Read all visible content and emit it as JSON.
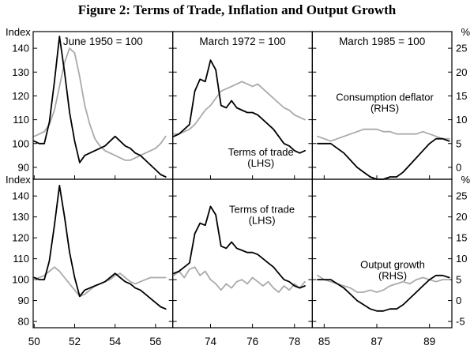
{
  "chart_data": {
    "type": "line",
    "title": "Figure 2: Terms of Trade, Inflation and Output Growth",
    "colors": {
      "black": "#000000",
      "gray": "#aaaaaa"
    },
    "right_axis_alignment": {
      "index_at_zero_pct": 90,
      "index_per_pct": 2
    },
    "rows": [
      {
        "left_axis": {
          "label": "Index",
          "ticks": [
            140,
            130,
            120,
            110,
            100,
            90
          ],
          "range": [
            85,
            147
          ]
        },
        "right_axis": {
          "label": "%",
          "ticks": [
            25,
            20,
            15,
            10,
            5,
            0
          ]
        },
        "show_panel_titles": true,
        "show_x_labels": false,
        "panels": [
          {
            "title": "June 1950 = 100",
            "x_range": [
              49.95,
              56.85
            ],
            "x_ticks": [
              50,
              52,
              54,
              56
            ],
            "series": [
              {
                "name": "Terms of trade",
                "axis": "left",
                "color": "black",
                "data_key": "tot_1950s"
              },
              {
                "name": "Consumption deflator",
                "axis": "right",
                "color": "gray",
                "data_key": "cpi_1950s"
              }
            ],
            "annotations": []
          },
          {
            "title": "March 1972 = 100",
            "x_range": [
              72.2,
              78.85
            ],
            "x_ticks": [
              74,
              76,
              78
            ],
            "series": [
              {
                "name": "Terms of trade",
                "axis": "left",
                "color": "black",
                "data_key": "tot_1970s"
              },
              {
                "name": "Consumption deflator",
                "axis": "right",
                "color": "gray",
                "data_key": "cpi_1970s"
              }
            ],
            "annotations": [
              {
                "lines": [
                  "Terms of trade",
                  "(LHS)"
                ],
                "x": 76.4,
                "y_index": 95
              }
            ]
          },
          {
            "title": "March 1985 = 100",
            "x_range": [
              84.55,
              89.85
            ],
            "x_ticks": [
              85,
              87,
              89
            ],
            "series": [
              {
                "name": "Terms of trade",
                "axis": "left",
                "color": "black",
                "data_key": "tot_1980s"
              },
              {
                "name": "Consumption deflator",
                "axis": "right",
                "color": "gray",
                "data_key": "cpi_1980s"
              }
            ],
            "annotations": [
              {
                "lines": [
                  "Consumption deflator",
                  "(RHS)"
                ],
                "x": 87.3,
                "y_index": 118
              }
            ]
          }
        ]
      },
      {
        "left_axis": {
          "label": "Index",
          "ticks": [
            140,
            130,
            120,
            110,
            100,
            90,
            80
          ],
          "range": [
            77,
            148
          ]
        },
        "right_axis": {
          "label": "%",
          "ticks": [
            25,
            20,
            15,
            10,
            5,
            0,
            -5
          ]
        },
        "show_panel_titles": false,
        "show_x_labels": true,
        "panels": [
          {
            "title": "",
            "x_range": [
              49.95,
              56.85
            ],
            "x_ticks": [
              50,
              52,
              54,
              56
            ],
            "series": [
              {
                "name": "Terms of trade",
                "axis": "left",
                "color": "black",
                "data_key": "tot_1950s"
              },
              {
                "name": "Output growth",
                "axis": "right",
                "color": "gray",
                "data_key": "gdp_1950s"
              }
            ],
            "annotations": []
          },
          {
            "title": "",
            "x_range": [
              72.2,
              78.85
            ],
            "x_ticks": [
              74,
              76,
              78
            ],
            "series": [
              {
                "name": "Terms of trade",
                "axis": "left",
                "color": "black",
                "data_key": "tot_1970s"
              },
              {
                "name": "Output growth",
                "axis": "right",
                "color": "gray",
                "data_key": "gdp_1970s"
              }
            ],
            "annotations": [
              {
                "lines": [
                  "Terms of trade",
                  "(LHS)"
                ],
                "x": 76.45,
                "y_index": 132
              }
            ]
          },
          {
            "title": "",
            "x_range": [
              84.55,
              89.85
            ],
            "x_ticks": [
              85,
              87,
              89
            ],
            "series": [
              {
                "name": "Terms of trade",
                "axis": "left",
                "color": "black",
                "data_key": "tot_1980s"
              },
              {
                "name": "Output growth",
                "axis": "right",
                "color": "gray",
                "data_key": "gdp_1980s"
              }
            ],
            "annotations": [
              {
                "lines": [
                  "Output growth",
                  "(RHS)"
                ],
                "x": 87.6,
                "y_index": 105.5
              }
            ]
          }
        ]
      }
    ],
    "series_data": {
      "tot_1950s": [
        [
          50.0,
          101
        ],
        [
          50.25,
          100
        ],
        [
          50.5,
          100
        ],
        [
          50.75,
          109
        ],
        [
          51.0,
          126
        ],
        [
          51.25,
          145
        ],
        [
          51.5,
          130
        ],
        [
          51.75,
          113
        ],
        [
          52.0,
          101
        ],
        [
          52.25,
          92
        ],
        [
          52.5,
          95
        ],
        [
          52.75,
          96
        ],
        [
          53.0,
          97
        ],
        [
          53.25,
          98
        ],
        [
          53.5,
          99
        ],
        [
          53.75,
          101
        ],
        [
          54.0,
          103
        ],
        [
          54.25,
          101
        ],
        [
          54.5,
          99
        ],
        [
          54.75,
          98
        ],
        [
          55.0,
          96
        ],
        [
          55.25,
          95
        ],
        [
          55.5,
          93
        ],
        [
          55.75,
          91
        ],
        [
          56.0,
          89
        ],
        [
          56.25,
          87
        ],
        [
          56.5,
          86
        ]
      ],
      "cpi_1950s": [
        [
          50.0,
          6.5
        ],
        [
          50.25,
          7
        ],
        [
          50.5,
          7.5
        ],
        [
          50.75,
          9
        ],
        [
          51.0,
          12
        ],
        [
          51.25,
          17
        ],
        [
          51.5,
          22
        ],
        [
          51.75,
          25
        ],
        [
          52.0,
          24
        ],
        [
          52.25,
          19
        ],
        [
          52.5,
          13
        ],
        [
          52.75,
          9
        ],
        [
          53.0,
          6
        ],
        [
          53.25,
          4.5
        ],
        [
          53.5,
          3.5
        ],
        [
          53.75,
          3
        ],
        [
          54.0,
          2.5
        ],
        [
          54.25,
          2
        ],
        [
          54.5,
          1.5
        ],
        [
          54.75,
          1.5
        ],
        [
          55.0,
          2
        ],
        [
          55.25,
          2.5
        ],
        [
          55.5,
          3
        ],
        [
          55.75,
          3.5
        ],
        [
          56.0,
          4
        ],
        [
          56.25,
          5
        ],
        [
          56.5,
          6.5
        ]
      ],
      "gdp_1950s": [
        [
          50.0,
          5
        ],
        [
          50.25,
          5.5
        ],
        [
          50.5,
          6
        ],
        [
          50.75,
          7
        ],
        [
          51.0,
          8
        ],
        [
          51.25,
          7
        ],
        [
          51.5,
          5.5
        ],
        [
          51.75,
          4
        ],
        [
          52.0,
          2.5
        ],
        [
          52.25,
          1
        ],
        [
          52.5,
          1.5
        ],
        [
          52.75,
          2.5
        ],
        [
          53.0,
          3.5
        ],
        [
          53.25,
          4
        ],
        [
          53.5,
          4.5
        ],
        [
          53.75,
          5
        ],
        [
          54.0,
          6
        ],
        [
          54.25,
          6.5
        ],
        [
          54.5,
          5.5
        ],
        [
          54.75,
          4.5
        ],
        [
          55.0,
          4
        ],
        [
          55.25,
          4.5
        ],
        [
          55.5,
          5
        ],
        [
          55.75,
          5.5
        ],
        [
          56.0,
          5.5
        ],
        [
          56.25,
          5.5
        ],
        [
          56.5,
          5.5
        ]
      ],
      "tot_1970s": [
        [
          72.25,
          103
        ],
        [
          72.5,
          104
        ],
        [
          72.75,
          106
        ],
        [
          73.0,
          108
        ],
        [
          73.25,
          122
        ],
        [
          73.5,
          127
        ],
        [
          73.75,
          126
        ],
        [
          74.0,
          135
        ],
        [
          74.25,
          131
        ],
        [
          74.5,
          116
        ],
        [
          74.75,
          115
        ],
        [
          75.0,
          118
        ],
        [
          75.25,
          115
        ],
        [
          75.5,
          114
        ],
        [
          75.75,
          113
        ],
        [
          76.0,
          113
        ],
        [
          76.25,
          112
        ],
        [
          76.5,
          110
        ],
        [
          76.75,
          108
        ],
        [
          77.0,
          106
        ],
        [
          77.25,
          103
        ],
        [
          77.5,
          100
        ],
        [
          77.75,
          99
        ],
        [
          78.0,
          97
        ],
        [
          78.25,
          96
        ],
        [
          78.5,
          97
        ]
      ],
      "cpi_1970s": [
        [
          72.25,
          7
        ],
        [
          72.5,
          7
        ],
        [
          72.75,
          7.5
        ],
        [
          73.0,
          8
        ],
        [
          73.25,
          9
        ],
        [
          73.5,
          10.5
        ],
        [
          73.75,
          12
        ],
        [
          74.0,
          13
        ],
        [
          74.25,
          14.5
        ],
        [
          74.5,
          16
        ],
        [
          74.75,
          16.5
        ],
        [
          75.0,
          17
        ],
        [
          75.25,
          17.5
        ],
        [
          75.5,
          18
        ],
        [
          75.75,
          17.5
        ],
        [
          76.0,
          17
        ],
        [
          76.25,
          17.5
        ],
        [
          76.5,
          16.5
        ],
        [
          76.75,
          15.5
        ],
        [
          77.0,
          14.5
        ],
        [
          77.25,
          13.5
        ],
        [
          77.5,
          12.5
        ],
        [
          77.75,
          12
        ],
        [
          78.0,
          11
        ],
        [
          78.25,
          10.5
        ],
        [
          78.5,
          10
        ]
      ],
      "gdp_1970s": [
        [
          72.25,
          6
        ],
        [
          72.5,
          7
        ],
        [
          72.75,
          5.5
        ],
        [
          73.0,
          7.5
        ],
        [
          73.25,
          8
        ],
        [
          73.5,
          6
        ],
        [
          73.75,
          7
        ],
        [
          74.0,
          5
        ],
        [
          74.25,
          4
        ],
        [
          74.5,
          2.5
        ],
        [
          74.75,
          4
        ],
        [
          75.0,
          3
        ],
        [
          75.25,
          4.5
        ],
        [
          75.5,
          5
        ],
        [
          75.75,
          4
        ],
        [
          76.0,
          5.5
        ],
        [
          76.25,
          4.5
        ],
        [
          76.5,
          3.5
        ],
        [
          76.75,
          4.5
        ],
        [
          77.0,
          3
        ],
        [
          77.25,
          2
        ],
        [
          77.5,
          3.5
        ],
        [
          77.75,
          2.5
        ],
        [
          78.0,
          4
        ],
        [
          78.25,
          3
        ],
        [
          78.5,
          4.5
        ]
      ],
      "tot_1980s": [
        [
          84.75,
          100
        ],
        [
          85.0,
          100
        ],
        [
          85.25,
          100
        ],
        [
          85.5,
          98
        ],
        [
          85.75,
          96
        ],
        [
          86.0,
          93
        ],
        [
          86.25,
          90
        ],
        [
          86.5,
          88
        ],
        [
          86.75,
          86
        ],
        [
          87.0,
          85
        ],
        [
          87.25,
          85
        ],
        [
          87.5,
          86
        ],
        [
          87.75,
          86
        ],
        [
          88.0,
          88
        ],
        [
          88.25,
          91
        ],
        [
          88.5,
          94
        ],
        [
          88.75,
          97
        ],
        [
          89.0,
          100
        ],
        [
          89.25,
          102
        ],
        [
          89.5,
          102
        ],
        [
          89.75,
          101
        ]
      ],
      "cpi_1980s": [
        [
          84.75,
          6.5
        ],
        [
          85.0,
          6
        ],
        [
          85.25,
          5.5
        ],
        [
          85.5,
          6
        ],
        [
          85.75,
          6.5
        ],
        [
          86.0,
          7
        ],
        [
          86.25,
          7.5
        ],
        [
          86.5,
          8
        ],
        [
          86.75,
          8
        ],
        [
          87.0,
          8
        ],
        [
          87.25,
          7.5
        ],
        [
          87.5,
          7.5
        ],
        [
          87.75,
          7
        ],
        [
          88.0,
          7
        ],
        [
          88.25,
          7
        ],
        [
          88.5,
          7
        ],
        [
          88.75,
          7.5
        ],
        [
          89.0,
          7
        ],
        [
          89.25,
          6.5
        ],
        [
          89.5,
          6
        ],
        [
          89.75,
          6
        ]
      ],
      "gdp_1980s": [
        [
          84.75,
          6
        ],
        [
          85.0,
          5
        ],
        [
          85.25,
          4.5
        ],
        [
          85.5,
          4
        ],
        [
          85.75,
          3.5
        ],
        [
          86.0,
          3
        ],
        [
          86.25,
          2
        ],
        [
          86.5,
          2
        ],
        [
          86.75,
          2.5
        ],
        [
          87.0,
          2
        ],
        [
          87.25,
          2.5
        ],
        [
          87.5,
          3.5
        ],
        [
          87.75,
          4
        ],
        [
          88.0,
          4.5
        ],
        [
          88.25,
          4
        ],
        [
          88.5,
          5
        ],
        [
          88.75,
          5.5
        ],
        [
          89.0,
          5
        ],
        [
          89.25,
          4.5
        ],
        [
          89.5,
          5
        ],
        [
          89.75,
          5
        ]
      ]
    }
  }
}
